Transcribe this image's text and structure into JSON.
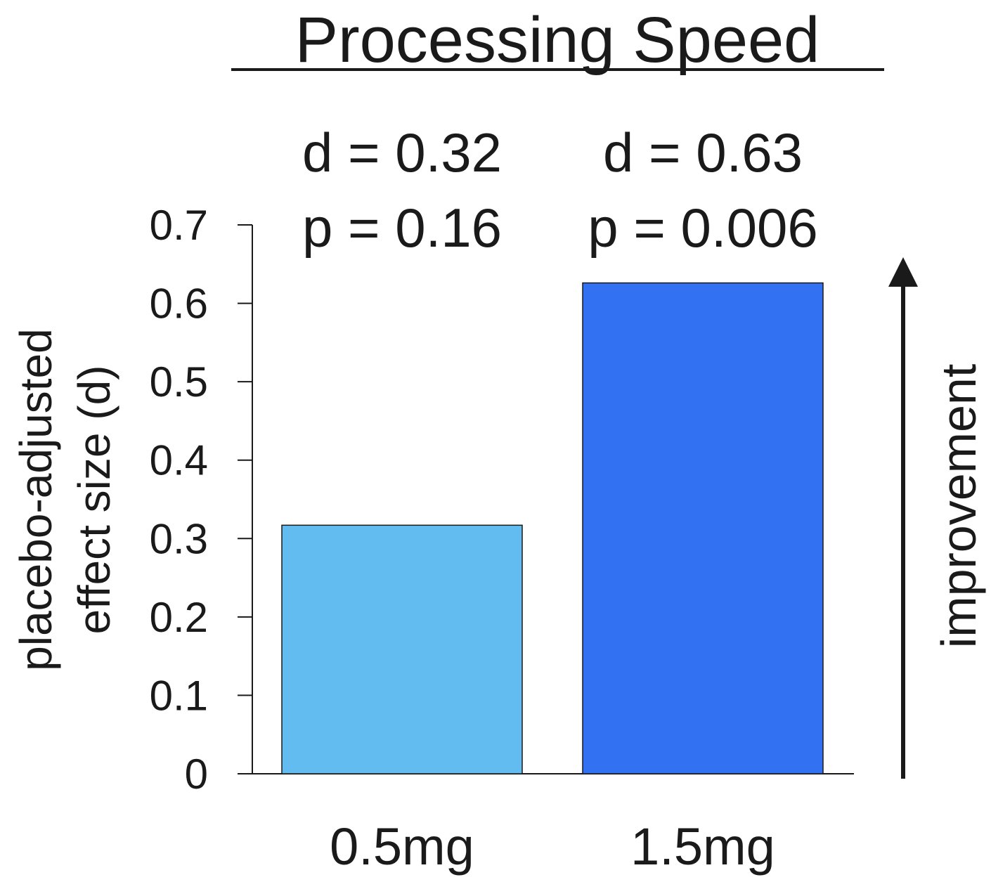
{
  "chart_data": {
    "type": "bar",
    "title": "Processing Speed",
    "categories": [
      "0.5mg",
      "1.5mg"
    ],
    "values": [
      0.317,
      0.626
    ],
    "bar_colors": [
      "#63bcf0",
      "#3272f2"
    ],
    "annotations": [
      {
        "d": "d = 0.32",
        "p": "p = 0.16"
      },
      {
        "d": "d = 0.63",
        "p": "p = 0.006"
      }
    ],
    "ylabel_lines": [
      "placebo-adjusted",
      "effect size (d)"
    ],
    "yticks": [
      0,
      0.1,
      0.2,
      0.3,
      0.4,
      0.5,
      0.6,
      0.7
    ],
    "ytick_labels": [
      "0",
      "0.1",
      "0.2",
      "0.3",
      "0.4",
      "0.5",
      "0.6",
      "0.7"
    ],
    "ylim": [
      0,
      0.7
    ],
    "side_label": "improvement",
    "grid": false
  }
}
